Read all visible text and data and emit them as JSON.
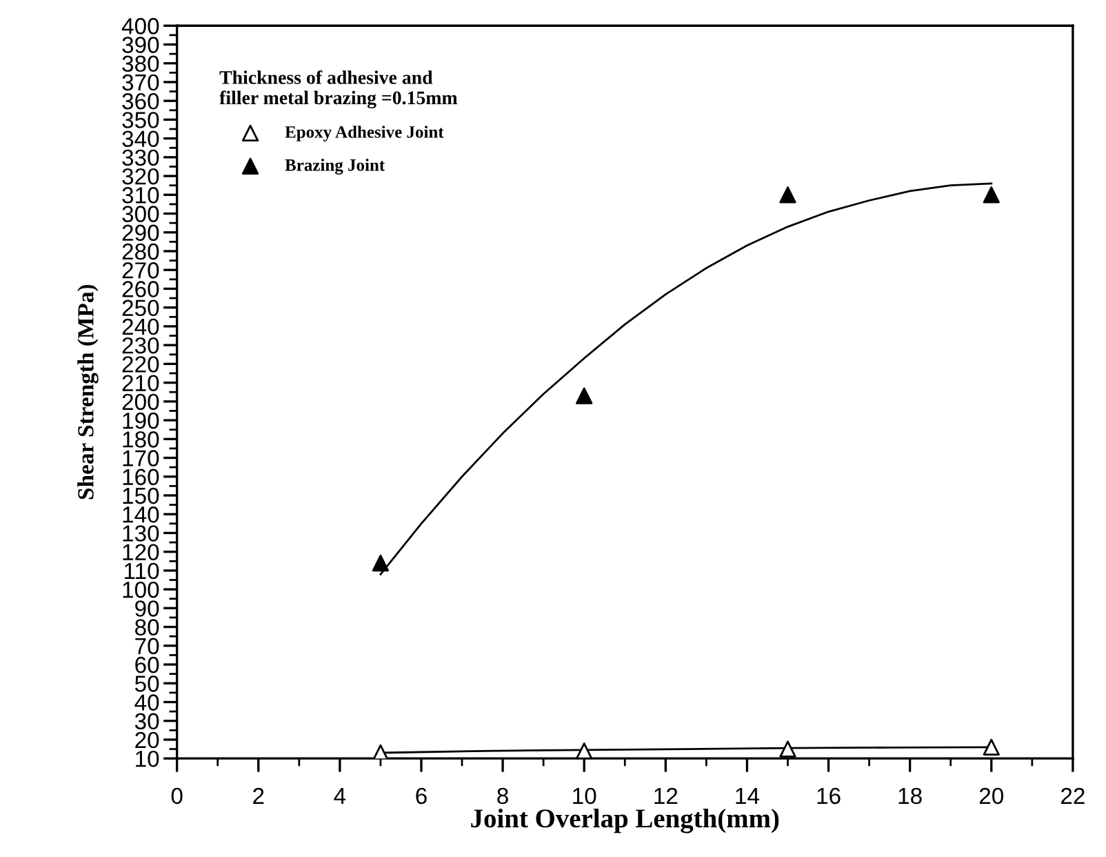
{
  "chart_data": {
    "type": "scatter",
    "xlabel": "Joint Overlap Length(mm)",
    "ylabel": "Shear Strength (MPa)",
    "legend_title": "Thickness of adhesive and\nfiller metal brazing =0.15mm",
    "legend": "top left",
    "grid": false,
    "xlim": [
      0,
      22
    ],
    "ylim": [
      10,
      400
    ],
    "xticks": [
      0,
      {
        "value": 1,
        "label": null
      },
      2,
      {
        "value": 3,
        "label": null
      },
      4,
      {
        "value": 5,
        "label": null
      },
      6,
      {
        "value": 7,
        "label": null
      },
      8,
      {
        "value": 9,
        "label": null
      },
      10,
      {
        "value": 11,
        "label": null
      },
      12,
      {
        "value": 13,
        "label": null
      },
      14,
      {
        "value": 15,
        "label": null
      },
      16,
      {
        "value": 17,
        "label": null
      },
      18,
      {
        "value": 19,
        "label": null
      },
      20,
      {
        "value": 21,
        "label": null
      },
      22
    ],
    "yticks": [
      10,
      {
        "value": 15,
        "label": null
      },
      20,
      {
        "value": 25,
        "label": null
      },
      30,
      {
        "value": 35,
        "label": null
      },
      40,
      {
        "value": 45,
        "label": null
      },
      50,
      {
        "value": 55,
        "label": null
      },
      60,
      {
        "value": 65,
        "label": null
      },
      70,
      {
        "value": 75,
        "label": null
      },
      80,
      {
        "value": 85,
        "label": null
      },
      90,
      {
        "value": 95,
        "label": null
      },
      100,
      {
        "value": 105,
        "label": null
      },
      110,
      {
        "value": 115,
        "label": null
      },
      120,
      {
        "value": 125,
        "label": null
      },
      130,
      {
        "value": 135,
        "label": null
      },
      140,
      {
        "value": 145,
        "label": null
      },
      150,
      {
        "value": 155,
        "label": null
      },
      160,
      {
        "value": 165,
        "label": null
      },
      170,
      {
        "value": 175,
        "label": null
      },
      180,
      {
        "value": 185,
        "label": null
      },
      190,
      {
        "value": 195,
        "label": null
      },
      200,
      {
        "value": 205,
        "label": null
      },
      210,
      {
        "value": 215,
        "label": null
      },
      220,
      {
        "value": 225,
        "label": null
      },
      230,
      {
        "value": 235,
        "label": null
      },
      240,
      {
        "value": 245,
        "label": null
      },
      250,
      {
        "value": 255,
        "label": null
      },
      260,
      {
        "value": 265,
        "label": null
      },
      270,
      {
        "value": 275,
        "label": null
      },
      280,
      {
        "value": 285,
        "label": null
      },
      290,
      {
        "value": 295,
        "label": null
      },
      300,
      {
        "value": 305,
        "label": null
      },
      310,
      {
        "value": 315,
        "label": null
      },
      320,
      {
        "value": 325,
        "label": null
      },
      330,
      {
        "value": 335,
        "label": null
      },
      340,
      {
        "value": 345,
        "label": null
      },
      350,
      {
        "value": 355,
        "label": null
      },
      360,
      {
        "value": 365,
        "label": null
      },
      370,
      {
        "value": 375,
        "label": null
      },
      380,
      {
        "value": 385,
        "label": null
      },
      390,
      {
        "value": 395,
        "label": null
      },
      400
    ],
    "series": [
      {
        "name": "Epoxy Adhesive Joint",
        "marker": "triangle",
        "color": "#ffffff",
        "x": [
          5,
          10,
          15,
          20
        ],
        "values": [
          13,
          14,
          15,
          16
        ]
      },
      {
        "name": "Brazing Joint",
        "marker": "triangle",
        "color": "#000000",
        "x": [
          5,
          10,
          15,
          20
        ],
        "values": [
          114,
          203,
          310,
          310
        ]
      },
      {
        "type": "line",
        "color": "#000000",
        "line_style": "solid",
        "x": [
          5,
          7.5,
          10,
          12.5,
          15,
          17.5,
          20
        ],
        "values": [
          13,
          14,
          14.5,
          15,
          15.5,
          15.8,
          16
        ]
      },
      {
        "type": "line",
        "color": "#000000",
        "line_style": "solid",
        "x": [
          5,
          6,
          7,
          8,
          9,
          10,
          11,
          12,
          13,
          14,
          15,
          16,
          17,
          18,
          19,
          20
        ],
        "values": [
          108,
          135,
          160,
          183,
          204,
          223,
          241,
          257,
          271,
          283,
          293,
          301,
          307,
          312,
          315,
          316
        ]
      }
    ]
  }
}
